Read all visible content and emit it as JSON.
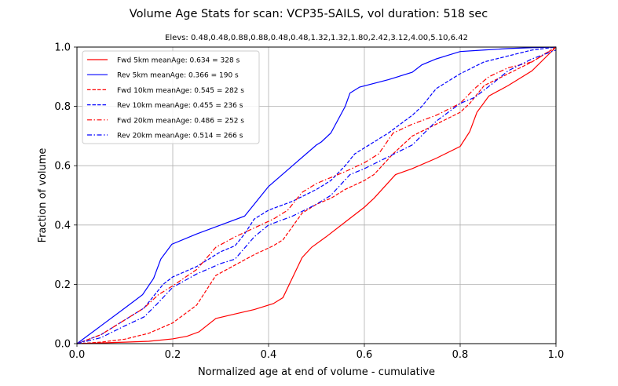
{
  "chart_data": {
    "type": "line",
    "title": "Volume Age Stats for scan: VCP35-SAILS, vol duration: 518 sec",
    "subtitle": "Elevs: 0.48,0.48,0.88,0.88,0.48,0.48,1.32,1.32,1.80,2.42,3.12,4.00,5.10,6.42",
    "xlabel": "Normalized age at end of volume - cumulative",
    "ylabel": "Fraction of volume",
    "xlim": [
      0.0,
      1.0
    ],
    "ylim": [
      0.0,
      1.0
    ],
    "xticks": [
      "0.0",
      "0.2",
      "0.4",
      "0.6",
      "0.8",
      "1.0"
    ],
    "yticks": [
      "0.0",
      "0.2",
      "0.4",
      "0.6",
      "0.8",
      "1.0"
    ],
    "grid": true,
    "legend_position": "top-left",
    "series": [
      {
        "name": "Fwd  5km meanAge: 0.634 = 328 s",
        "color": "#ff0000",
        "dash": "solid",
        "x": [
          0,
          0.1,
          0.15,
          0.2,
          0.23,
          0.255,
          0.29,
          0.33,
          0.37,
          0.41,
          0.43,
          0.47,
          0.49,
          0.52,
          0.56,
          0.6,
          0.62,
          0.665,
          0.7,
          0.75,
          0.8,
          0.82,
          0.835,
          0.86,
          0.9,
          0.95,
          1.0
        ],
        "y": [
          0,
          0.005,
          0.008,
          0.016,
          0.025,
          0.04,
          0.085,
          0.1,
          0.115,
          0.135,
          0.155,
          0.29,
          0.325,
          0.36,
          0.41,
          0.46,
          0.49,
          0.57,
          0.59,
          0.625,
          0.665,
          0.715,
          0.78,
          0.835,
          0.87,
          0.92,
          1.0
        ]
      },
      {
        "name": "Rev  5km meanAge: 0.366 = 190 s",
        "color": "#0000ff",
        "dash": "solid",
        "x": [
          0,
          0.05,
          0.1,
          0.137,
          0.16,
          0.175,
          0.198,
          0.25,
          0.3,
          0.35,
          0.37,
          0.4,
          0.45,
          0.5,
          0.51,
          0.53,
          0.56,
          0.57,
          0.59,
          0.65,
          0.7,
          0.72,
          0.75,
          0.77,
          0.8,
          0.85,
          0.9,
          0.95,
          1.0
        ],
        "y": [
          0,
          0.06,
          0.12,
          0.165,
          0.22,
          0.285,
          0.335,
          0.37,
          0.4,
          0.43,
          0.47,
          0.53,
          0.6,
          0.67,
          0.68,
          0.71,
          0.8,
          0.845,
          0.865,
          0.89,
          0.915,
          0.94,
          0.96,
          0.97,
          0.985,
          0.99,
          0.995,
          0.998,
          1.0
        ]
      },
      {
        "name": "Fwd 10km meanAge: 0.545 = 282 s",
        "color": "#ff0000",
        "dash": "dashed",
        "x": [
          0,
          0.05,
          0.1,
          0.15,
          0.2,
          0.25,
          0.29,
          0.33,
          0.37,
          0.41,
          0.43,
          0.47,
          0.5,
          0.53,
          0.56,
          0.6,
          0.62,
          0.66,
          0.7,
          0.75,
          0.8,
          0.82,
          0.85,
          0.9,
          0.95,
          1.0
        ],
        "y": [
          0,
          0.005,
          0.015,
          0.035,
          0.07,
          0.13,
          0.23,
          0.265,
          0.3,
          0.33,
          0.35,
          0.44,
          0.47,
          0.49,
          0.52,
          0.55,
          0.57,
          0.64,
          0.7,
          0.74,
          0.78,
          0.81,
          0.87,
          0.91,
          0.95,
          1.0
        ]
      },
      {
        "name": "Rev 10km meanAge: 0.455 = 236 s",
        "color": "#0000ff",
        "dash": "dashed",
        "x": [
          0,
          0.05,
          0.1,
          0.14,
          0.16,
          0.18,
          0.2,
          0.25,
          0.3,
          0.33,
          0.35,
          0.37,
          0.4,
          0.45,
          0.5,
          0.53,
          0.56,
          0.58,
          0.6,
          0.65,
          0.7,
          0.72,
          0.75,
          0.8,
          0.85,
          0.9,
          0.95,
          1.0
        ],
        "y": [
          0,
          0.03,
          0.08,
          0.12,
          0.16,
          0.2,
          0.225,
          0.26,
          0.31,
          0.33,
          0.37,
          0.42,
          0.45,
          0.48,
          0.52,
          0.55,
          0.6,
          0.64,
          0.66,
          0.71,
          0.77,
          0.8,
          0.86,
          0.91,
          0.95,
          0.97,
          0.99,
          1.0
        ]
      },
      {
        "name": "Fwd 20km meanAge: 0.486 = 252 s",
        "color": "#ff0000",
        "dash": "dashdot",
        "x": [
          0,
          0.05,
          0.1,
          0.14,
          0.17,
          0.2,
          0.25,
          0.29,
          0.33,
          0.37,
          0.41,
          0.44,
          0.47,
          0.5,
          0.53,
          0.56,
          0.6,
          0.63,
          0.66,
          0.7,
          0.75,
          0.8,
          0.83,
          0.86,
          0.9,
          0.95,
          1.0
        ],
        "y": [
          0,
          0.03,
          0.08,
          0.12,
          0.165,
          0.195,
          0.25,
          0.325,
          0.36,
          0.39,
          0.42,
          0.45,
          0.51,
          0.54,
          0.56,
          0.58,
          0.61,
          0.64,
          0.71,
          0.74,
          0.77,
          0.81,
          0.86,
          0.9,
          0.93,
          0.95,
          1.0
        ]
      },
      {
        "name": "Rev 20km meanAge: 0.514 = 266 s",
        "color": "#0000ff",
        "dash": "dashdot",
        "x": [
          0,
          0.05,
          0.1,
          0.14,
          0.165,
          0.2,
          0.25,
          0.3,
          0.33,
          0.37,
          0.4,
          0.45,
          0.5,
          0.53,
          0.57,
          0.6,
          0.65,
          0.7,
          0.75,
          0.8,
          0.83,
          0.87,
          0.9,
          0.95,
          1.0
        ],
        "y": [
          0,
          0.02,
          0.06,
          0.09,
          0.13,
          0.19,
          0.235,
          0.27,
          0.285,
          0.36,
          0.4,
          0.43,
          0.47,
          0.5,
          0.57,
          0.59,
          0.63,
          0.67,
          0.75,
          0.81,
          0.83,
          0.88,
          0.92,
          0.96,
          0.99
        ]
      }
    ]
  }
}
